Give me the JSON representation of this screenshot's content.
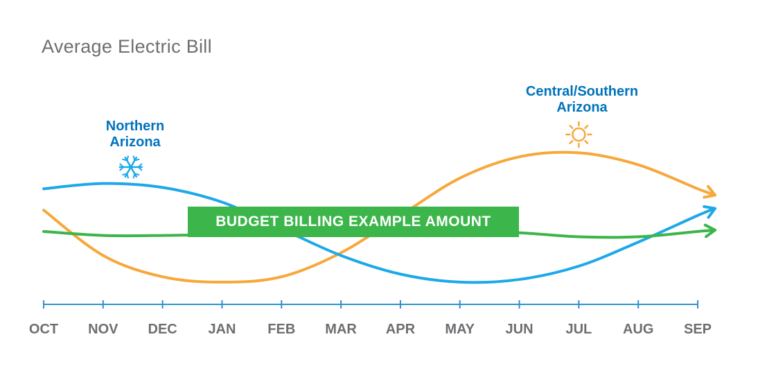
{
  "chart_data": {
    "type": "line",
    "title": "Average Electric Bill",
    "categories": [
      "OCT",
      "NOV",
      "DEC",
      "JAN",
      "FEB",
      "MAR",
      "APR",
      "MAY",
      "JUN",
      "JUL",
      "AUG",
      "SEP"
    ],
    "series": [
      {
        "name": "Northern Arizona",
        "color": "#1da9e8",
        "icon": "snowflake-icon",
        "values": [
          0.52,
          0.56,
          0.53,
          0.42,
          0.22,
          0.02,
          -0.12,
          -0.18,
          -0.16,
          -0.06,
          0.12,
          0.32
        ]
      },
      {
        "name": "Central/Southern Arizona",
        "color": "#f6a83b",
        "icon": "sun-icon",
        "values": [
          0.36,
          0.02,
          -0.14,
          -0.18,
          -0.14,
          0.04,
          0.32,
          0.6,
          0.76,
          0.79,
          0.7,
          0.52
        ]
      },
      {
        "name": "BUDGET BILLING EXAMPLE AMOUNT",
        "color": "#3cb54a",
        "values": [
          0.2,
          0.17,
          0.17,
          0.18,
          0.2,
          0.2,
          0.2,
          0.2,
          0.19,
          0.16,
          0.16,
          0.2
        ]
      }
    ],
    "axis_color": "#2e8fcf",
    "grid": false,
    "ylim": [
      -0.3,
      1.0
    ]
  }
}
